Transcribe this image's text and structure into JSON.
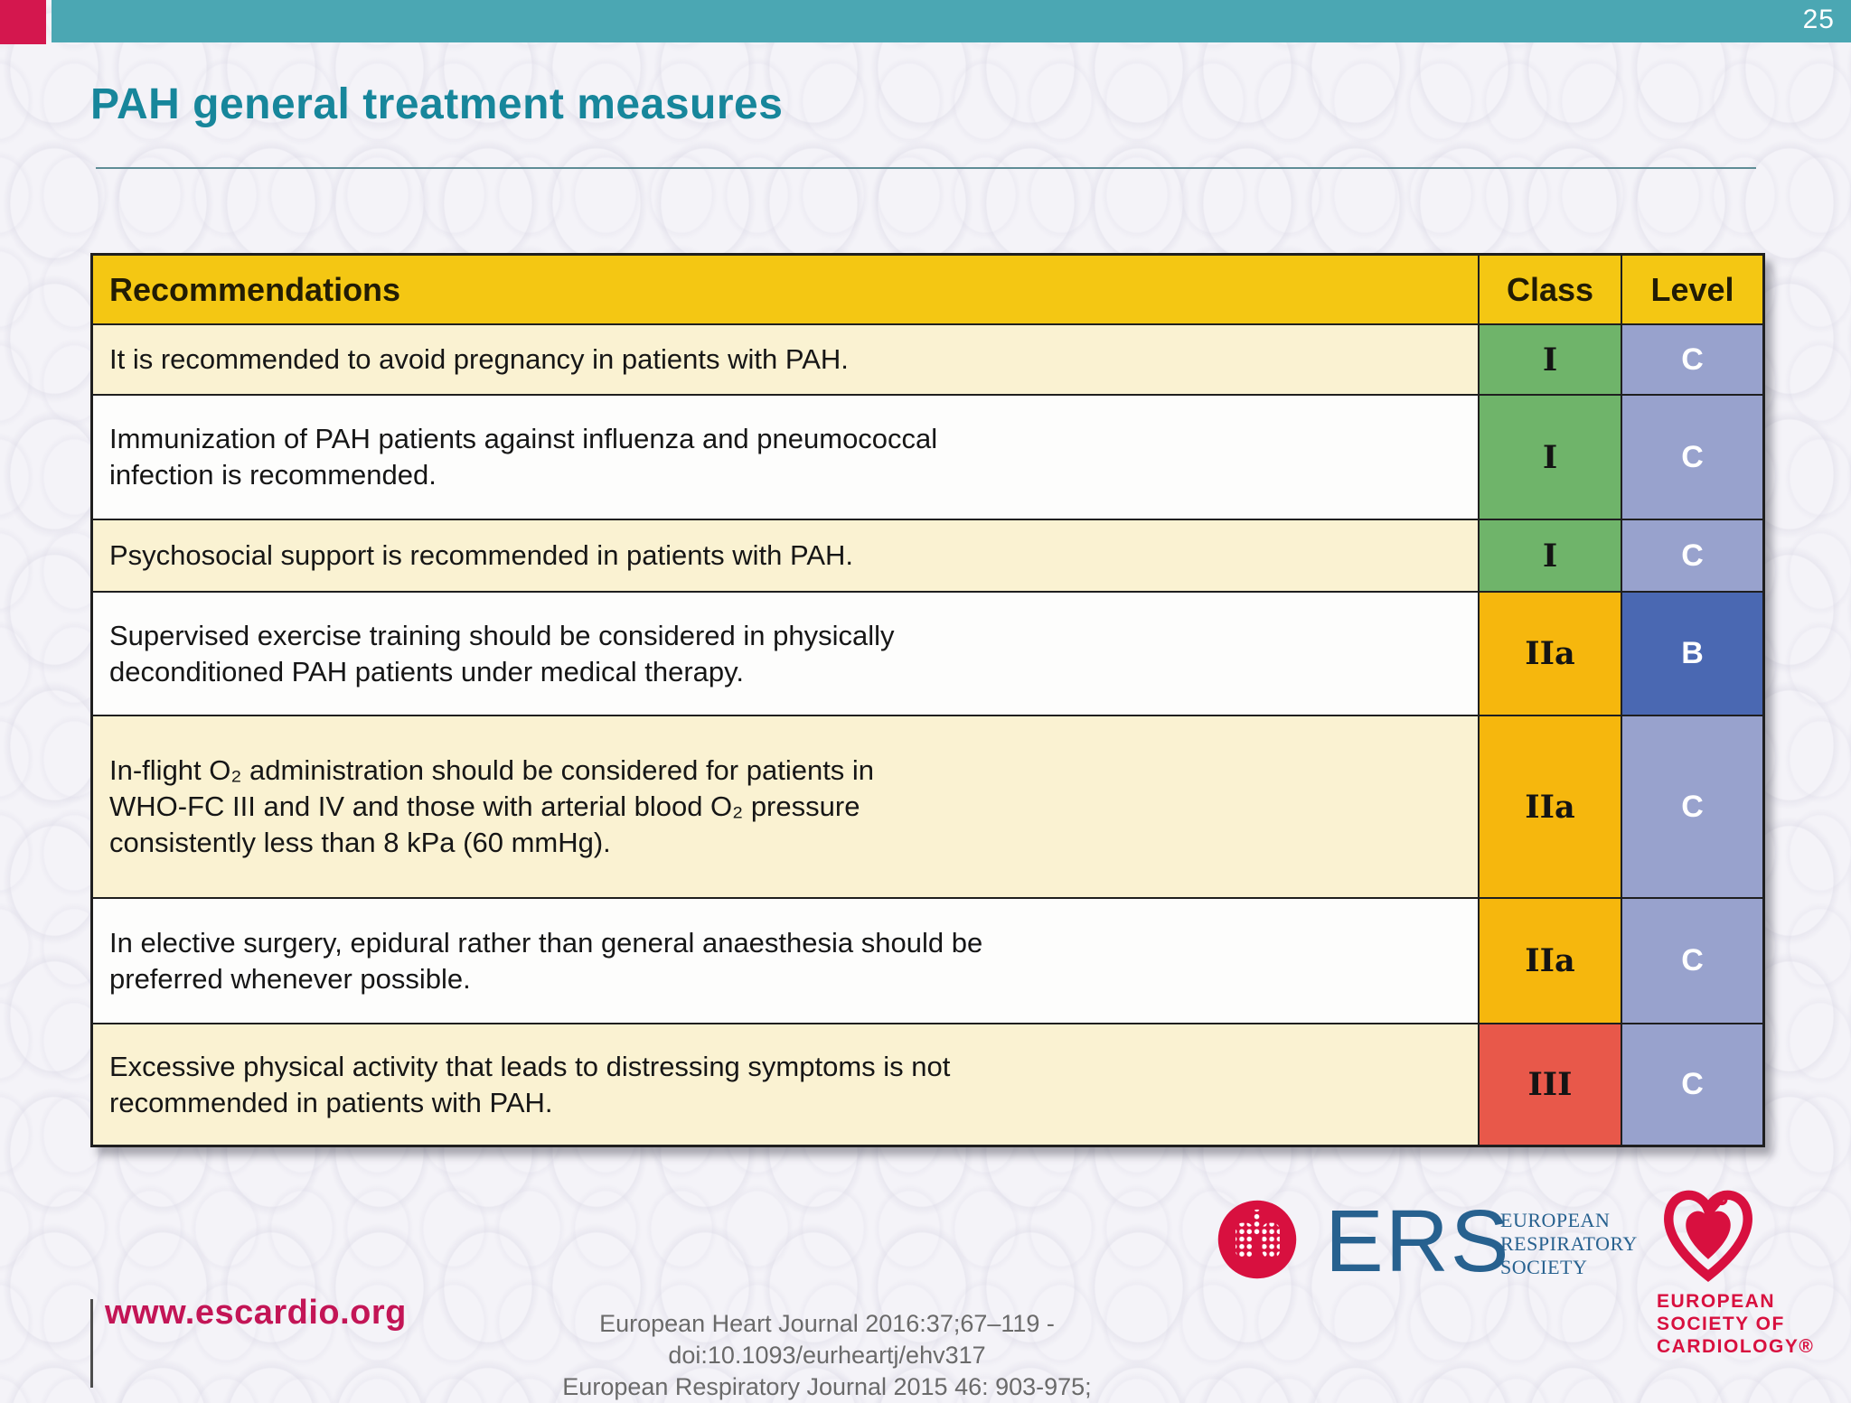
{
  "page_number": "25",
  "title": "PAH general treatment measures",
  "table": {
    "headers": [
      "Recommendations",
      "Class",
      "Level"
    ],
    "rows": [
      {
        "lines": [
          "It is recommended to avoid pregnancy in patients with PAH."
        ],
        "class": "I",
        "level": "C"
      },
      {
        "lines": [
          "Immunization of PAH patients against influenza and pneumococcal",
          "infection is recommended."
        ],
        "class": "I",
        "level": "C"
      },
      {
        "lines": [
          "Psychosocial support is recommended in patients with PAH."
        ],
        "class": "I",
        "level": "C"
      },
      {
        "lines": [
          "Supervised exercise training should be considered in physically",
          "deconditioned PAH patients under medical therapy."
        ],
        "class": "IIa",
        "level": "B"
      },
      {
        "lines": [
          "In-flight O₂ administration should be considered for patients in",
          "WHO-FC III and IV and those with arterial blood O₂ pressure",
          "consistently less than 8 kPa (60 mmHg)."
        ],
        "class": "IIa",
        "level": "C"
      },
      {
        "lines": [
          "In elective surgery, epidural rather than general anaesthesia should be",
          "preferred whenever possible."
        ],
        "class": "IIa",
        "level": "C"
      },
      {
        "lines": [
          "Excessive physical activity that leads to distressing symptoms is not",
          "recommended in patients with PAH."
        ],
        "class": "III",
        "level": "C"
      }
    ]
  },
  "footer": {
    "website": "www.escardio.org",
    "citation_line1": "European Heart Journal 2016:37;67–119 -doi:10.1093/eurheartj/ehv317",
    "citation_line2": "European Respiratory Journal 2015 46: 903-975;",
    "ers_acronym": "ERS",
    "ers_society_lines": [
      "EUROPEAN",
      "RESPIRATORY",
      "SOCIETY"
    ],
    "esc_lines": [
      "EUROPEAN",
      "SOCIETY OF",
      "CARDIOLOGY®"
    ]
  },
  "colors": {
    "teal_bar": "#4ba7b3",
    "accent_pink": "#d4174e",
    "title_teal": "#17869b",
    "header_gold": "#f4c713",
    "row_cream": "#faf2d2",
    "class_I": "#6fb46a",
    "class_IIa": "#f6b70d",
    "class_III": "#e8584a",
    "level_C": "#98a2cd",
    "level_B": "#4a68b2",
    "ers_blue": "#27618f",
    "esc_red": "#d8103f",
    "link_crimson": "#c31556",
    "citation_gray": "#6a6a6a"
  }
}
